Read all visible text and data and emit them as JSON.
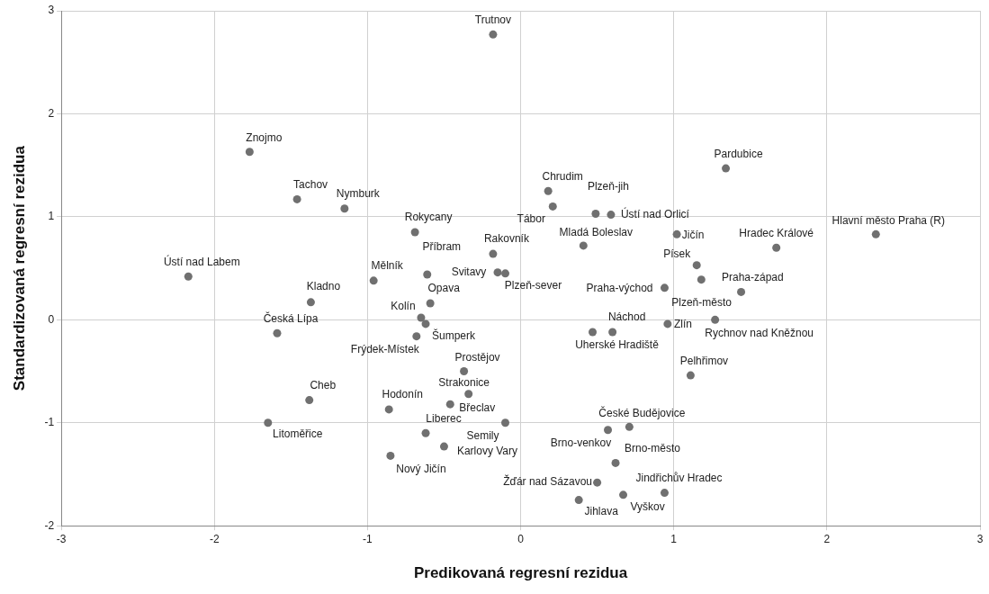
{
  "chart_data": {
    "type": "scatter",
    "xlabel": "Predikovaná regresní rezidua",
    "ylabel": "Standardizovaná regresní rezidua",
    "xlim": [
      -3,
      3
    ],
    "ylim": [
      -2,
      3
    ],
    "xticks": [
      -3,
      -2,
      -1,
      0,
      1,
      2,
      3
    ],
    "yticks": [
      -2,
      -1,
      0,
      1,
      2,
      3
    ],
    "grid": true,
    "marker": "circle",
    "series": [
      {
        "color": "#707070",
        "x": [
          -0.18,
          -1.77,
          -1.46,
          -1.15,
          -0.69,
          -0.61,
          -0.18,
          -2.17,
          -0.96,
          -0.15,
          -0.1,
          -1.37,
          -0.59,
          -0.65,
          -0.62,
          -0.68,
          -1.59,
          -0.37,
          -0.34,
          -0.46,
          -0.1,
          -0.86,
          -1.38,
          -1.65,
          -0.62,
          -0.5,
          -0.85,
          1.34,
          0.18,
          0.21,
          0.49,
          0.59,
          0.41,
          1.02,
          1.67,
          2.32,
          1.15,
          1.18,
          1.44,
          0.94,
          1.27,
          0.96,
          0.6,
          0.47,
          1.11,
          0.71,
          0.57,
          0.62,
          0.5,
          0.38,
          0.67,
          0.94
        ],
        "values": [
          2.77,
          1.63,
          1.17,
          1.08,
          0.85,
          0.44,
          0.64,
          0.42,
          0.38,
          0.46,
          0.45,
          0.17,
          0.16,
          0.02,
          -0.04,
          -0.16,
          -0.13,
          -0.5,
          -0.72,
          -0.82,
          -1.0,
          -0.87,
          -0.78,
          -1.0,
          -1.1,
          -1.23,
          -1.32,
          1.47,
          1.25,
          1.1,
          1.03,
          1.02,
          0.72,
          0.83,
          0.7,
          0.83,
          0.53,
          0.39,
          0.27,
          0.31,
          0.0,
          -0.04,
          -0.12,
          -0.12,
          -0.54,
          -1.04,
          -1.07,
          -1.39,
          -1.58,
          -1.75,
          -1.7,
          -1.68
        ],
        "value_labels": [
          "Trutnov",
          "Znojmo",
          "Tachov",
          "Nymburk",
          "Rokycany",
          "Příbram",
          "Rakovník",
          "Ústí nad Labem",
          "Mělník",
          "Svitavy",
          "Plzeň-sever",
          "Kladno",
          "Opava",
          "Kolín",
          "Šumperk",
          "Frýdek-Místek",
          "Česká Lípa",
          "Prostějov",
          "Strakonice",
          "Břeclav",
          "Semily",
          "Hodonín",
          "Cheb",
          "Litoměřice",
          "Liberec",
          "Karlovy Vary",
          "Nový Jičín",
          "Pardubice",
          "Chrudim",
          "Tábor",
          "Plzeň-jih",
          "Ústí nad Orlicí",
          "Mladá Boleslav",
          "Jičín",
          "Hradec Králové",
          "Hlavní město Praha (R)",
          "Písek",
          "Praha-západ",
          "Plzeň-město",
          "Praha-východ",
          "Rychnov nad Kněžnou",
          "Zlín",
          "Náchod",
          "Uherské Hradiště",
          "Pelhřimov",
          "České Budějovice",
          "Brno-venkov",
          "Brno-město",
          "Žďár nad Sázavou",
          "Jihlava",
          "Vyškov",
          "Jindřichův Hradec"
        ]
      }
    ]
  }
}
